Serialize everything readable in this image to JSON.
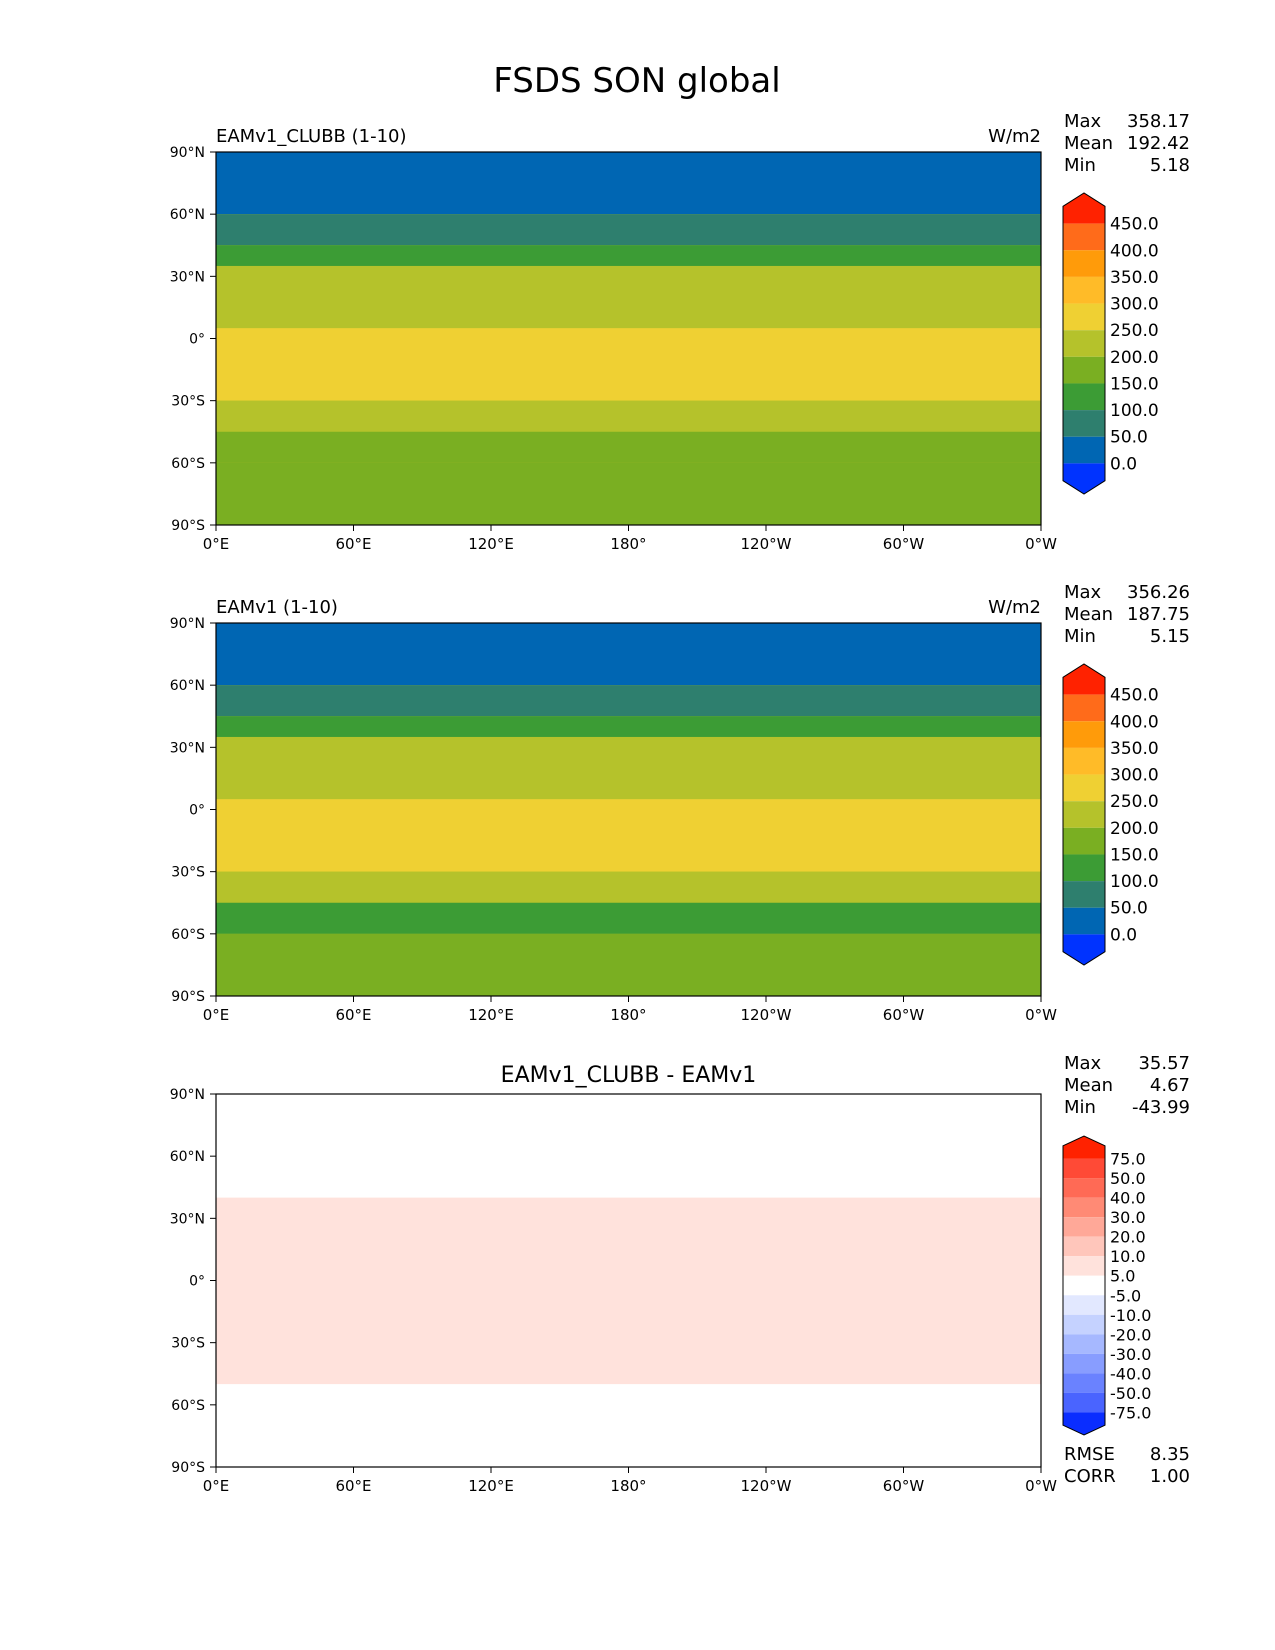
{
  "figure_title": "FSDS SON global",
  "chart_data": [
    {
      "type": "heatmap",
      "title": "EAMv1_CLUBB (1-10)",
      "units": "W/m2",
      "projection": "cylindrical",
      "x_ticks": [
        "0°E",
        "60°E",
        "120°E",
        "180°",
        "120°W",
        "60°W",
        "0°W"
      ],
      "y_ticks": [
        "90°N",
        "60°N",
        "30°N",
        "0°",
        "30°S",
        "60°S",
        "90°S"
      ],
      "stats": [
        {
          "label": "Max",
          "value": "358.17"
        },
        {
          "label": "Mean",
          "value": "192.42"
        },
        {
          "label": "Min",
          "value": "5.18"
        }
      ],
      "colorbar": {
        "levels": [
          "450.0",
          "400.0",
          "350.0",
          "300.0",
          "250.0",
          "200.0",
          "150.0",
          "100.0",
          "50.0",
          "0.0"
        ],
        "colors": [
          "#ff2200",
          "#ff6b1a",
          "#ff9b0a",
          "#ffbb28",
          "#efd033",
          "#b5c22b",
          "#7aaf22",
          "#3c9c35",
          "#2e7f6e",
          "#0066b3",
          "#0033ff"
        ]
      },
      "latitude_bands": [
        {
          "lat_range": [
            60,
            90
          ],
          "value": 25
        },
        {
          "lat_range": [
            45,
            60
          ],
          "value": 90
        },
        {
          "lat_range": [
            35,
            45
          ],
          "value": 140
        },
        {
          "lat_range": [
            5,
            35
          ],
          "value": 225
        },
        {
          "lat_range": [
            -30,
            5
          ],
          "value": 260
        },
        {
          "lat_range": [
            -45,
            -30
          ],
          "value": 210
        },
        {
          "lat_range": [
            -60,
            -45
          ],
          "value": 160
        },
        {
          "lat_range": [
            -90,
            -60
          ],
          "value": 190
        }
      ]
    },
    {
      "type": "heatmap",
      "title": "EAMv1 (1-10)",
      "units": "W/m2",
      "projection": "cylindrical",
      "x_ticks": [
        "0°E",
        "60°E",
        "120°E",
        "180°",
        "120°W",
        "60°W",
        "0°W"
      ],
      "y_ticks": [
        "90°N",
        "60°N",
        "30°N",
        "0°",
        "30°S",
        "60°S",
        "90°S"
      ],
      "stats": [
        {
          "label": "Max",
          "value": "356.26"
        },
        {
          "label": "Mean",
          "value": "187.75"
        },
        {
          "label": "Min",
          "value": "5.15"
        }
      ],
      "colorbar": {
        "levels": [
          "450.0",
          "400.0",
          "350.0",
          "300.0",
          "250.0",
          "200.0",
          "150.0",
          "100.0",
          "50.0",
          "0.0"
        ],
        "colors": [
          "#ff2200",
          "#ff6b1a",
          "#ff9b0a",
          "#ffbb28",
          "#efd033",
          "#b5c22b",
          "#7aaf22",
          "#3c9c35",
          "#2e7f6e",
          "#0066b3",
          "#0033ff"
        ]
      },
      "latitude_bands": [
        {
          "lat_range": [
            60,
            90
          ],
          "value": 25
        },
        {
          "lat_range": [
            45,
            60
          ],
          "value": 90
        },
        {
          "lat_range": [
            35,
            45
          ],
          "value": 140
        },
        {
          "lat_range": [
            5,
            35
          ],
          "value": 220
        },
        {
          "lat_range": [
            -30,
            5
          ],
          "value": 255
        },
        {
          "lat_range": [
            -45,
            -30
          ],
          "value": 200
        },
        {
          "lat_range": [
            -60,
            -45
          ],
          "value": 145
        },
        {
          "lat_range": [
            -90,
            -60
          ],
          "value": 185
        }
      ]
    },
    {
      "type": "heatmap",
      "title": "EAMv1_CLUBB - EAMv1",
      "units": "",
      "projection": "cylindrical",
      "x_ticks": [
        "0°E",
        "60°E",
        "120°E",
        "180°",
        "120°W",
        "60°W",
        "0°W"
      ],
      "y_ticks": [
        "90°N",
        "60°N",
        "30°N",
        "0°",
        "30°S",
        "60°S",
        "90°S"
      ],
      "stats": [
        {
          "label": "Max",
          "value": "35.57"
        },
        {
          "label": "Mean",
          "value": "4.67"
        },
        {
          "label": "Min",
          "value": "-43.99"
        }
      ],
      "extra_stats": [
        {
          "label": "RMSE",
          "value": "8.35"
        },
        {
          "label": "CORR",
          "value": "1.00"
        }
      ],
      "colorbar": {
        "levels": [
          "75.0",
          "50.0",
          "40.0",
          "30.0",
          "20.0",
          "10.0",
          "5.0",
          "-5.0",
          "-10.0",
          "-20.0",
          "-30.0",
          "-40.0",
          "-50.0",
          "-75.0"
        ],
        "colors": [
          "#ff2200",
          "#ff4a36",
          "#ff6a55",
          "#ff8a75",
          "#ffa898",
          "#ffc6bb",
          "#ffe2dc",
          "#ffffff",
          "#e2e8ff",
          "#c5d2ff",
          "#a6b8ff",
          "#889dff",
          "#6a82ff",
          "#4a64ff",
          "#0a2dff"
        ]
      },
      "latitude_bands": [
        {
          "lat_range": [
            -50,
            40
          ],
          "value": 8
        }
      ]
    }
  ]
}
